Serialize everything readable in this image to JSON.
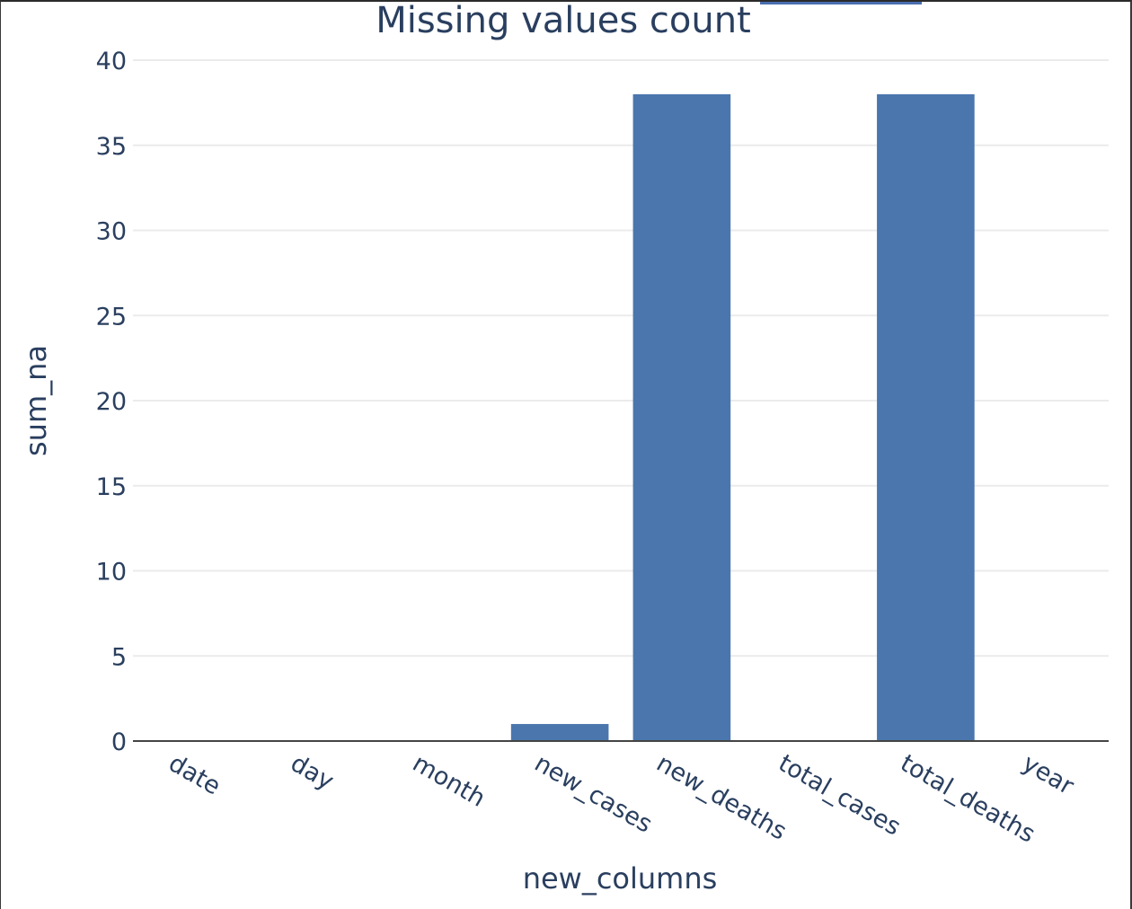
{
  "chart_data": {
    "type": "bar",
    "title": "Missing values count",
    "xlabel": "new_columns",
    "ylabel": "sum_na",
    "categories": [
      "date",
      "day",
      "month",
      "new_cases",
      "new_deaths",
      "total_cases",
      "total_deaths",
      "year"
    ],
    "values": [
      0,
      0,
      0,
      1,
      38,
      0,
      38,
      0
    ],
    "ylim": [
      0,
      40
    ],
    "yticks": [
      0,
      5,
      10,
      15,
      20,
      25,
      30,
      35,
      40
    ],
    "grid": true,
    "bar_color": "#4a76ad",
    "grid_color": "#ebebeb",
    "axis_line_color": "#444444",
    "text_color": "#2a3f5f"
  }
}
